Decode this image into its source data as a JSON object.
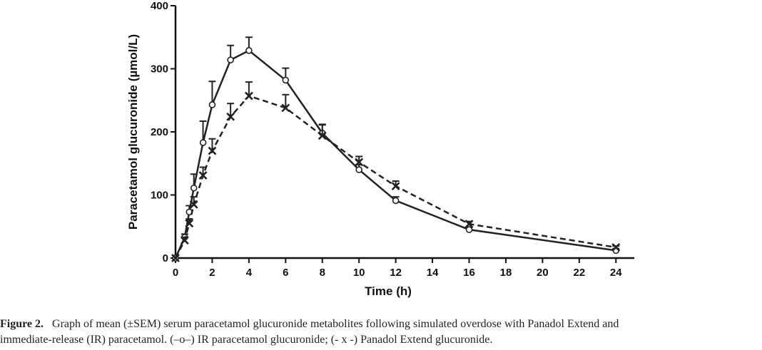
{
  "chart_data": {
    "type": "line",
    "title": "",
    "xlabel": "Time (h)",
    "ylabel": "Paracetamol glucuronide (µmol/L)",
    "xlim": [
      0,
      25
    ],
    "ylim": [
      0,
      400
    ],
    "xticks": [
      0,
      2,
      4,
      6,
      8,
      10,
      12,
      14,
      16,
      18,
      20,
      22,
      24
    ],
    "yticks": [
      0,
      100,
      200,
      300,
      400
    ],
    "grid": false,
    "legend": "none",
    "series": [
      {
        "marker": "circle",
        "line_style": "solid",
        "color": "#222222",
        "x": [
          0,
          0.5,
          0.75,
          1,
          1.5,
          2,
          3,
          4,
          6,
          8,
          10,
          12,
          16,
          24
        ],
        "y": [
          0,
          33,
          73,
          111,
          183,
          243,
          314,
          329,
          282,
          198,
          140,
          91,
          45,
          12
        ],
        "error": [
          0,
          5,
          10,
          22,
          34,
          37,
          23,
          21,
          19,
          13,
          8,
          6,
          4,
          3
        ]
      },
      {
        "marker": "x",
        "line_style": "dashed",
        "color": "#222222",
        "x": [
          0,
          0.5,
          0.75,
          1,
          1.5,
          2,
          3,
          4,
          6,
          8,
          10,
          12,
          16,
          24
        ],
        "y": [
          0,
          28,
          55,
          85,
          131,
          170,
          224,
          257,
          238,
          194,
          152,
          114,
          54,
          17
        ],
        "error": [
          0,
          5,
          7,
          12,
          13,
          19,
          21,
          22,
          21,
          18,
          9,
          8,
          4,
          2
        ]
      }
    ]
  },
  "caption": {
    "label": "Figure 2.",
    "line1": "Graph of mean (±SEM) serum paracetamol glucuronide metabolites following simulated overdose with Panadol Extend and",
    "line2": "immediate-release (IR) paracetamol. (–o–) IR paracetamol glucuronide; (- x -) Panadol Extend glucuronide."
  }
}
